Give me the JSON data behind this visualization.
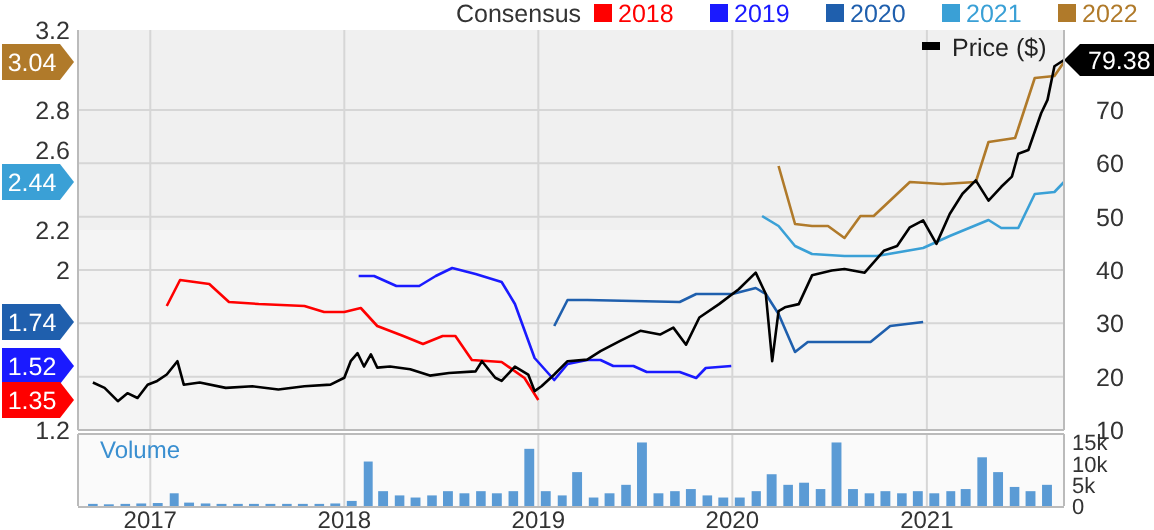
{
  "chart_data": [
    {
      "type": "line",
      "legend_title": "Consensus",
      "legend": "top",
      "grid": true,
      "tick_labels": "y",
      "marker": "none",
      "line_style": "solid",
      "xlim": [
        "2016-08-18",
        "2021-09-16"
      ],
      "xticks": [
        {
          "value": "2017-01-01",
          "label": null
        },
        {
          "value": "2018-01-01",
          "label": null
        },
        {
          "value": "2019-01-01",
          "label": null
        },
        {
          "value": "2020-01-01",
          "label": null
        },
        {
          "value": "2021-01-01",
          "label": null
        }
      ],
      "ylim": [
        1.2,
        3.2
      ],
      "yticks": [
        1.2,
        2,
        2.2,
        2.6,
        2.8,
        3.2
      ],
      "y2lim": [
        10,
        85
      ],
      "y2ticks": [
        10,
        20,
        30,
        40,
        50,
        60,
        70
      ],
      "annotations": [
        "3.04",
        "2.44",
        "1.74",
        "1.52",
        "1.35"
      ],
      "series": [
        {
          "name": "2018",
          "color": "#ff0000",
          "x": [
            "2017-02-01",
            "2017-02-26",
            "2017-04-22",
            "2017-05-29",
            "2017-07-24",
            "2017-10-18",
            "2017-11-24",
            "2018-01-01",
            "2018-02-01",
            "2018-03-04",
            "2018-04-22",
            "2018-05-29",
            "2018-07-05",
            "2018-07-29",
            "2018-08-29",
            "2018-10-24",
            "2018-12-06",
            "2019-01-01"
          ],
          "values": [
            1.82,
            1.95,
            1.93,
            1.84,
            1.83,
            1.82,
            1.79,
            1.79,
            1.81,
            1.72,
            1.67,
            1.63,
            1.67,
            1.67,
            1.55,
            1.54,
            1.46,
            1.35
          ]
        },
        {
          "name": "2019",
          "color": "#1a1aff",
          "x": [
            "2018-01-28",
            "2018-02-26",
            "2018-04-09",
            "2018-05-22",
            "2018-06-22",
            "2018-07-23",
            "2018-09-05",
            "2018-10-24",
            "2018-11-18",
            "2018-12-25",
            "2019-01-31",
            "2019-02-25",
            "2019-04-03",
            "2019-04-28",
            "2019-05-22",
            "2019-06-29",
            "2019-07-24",
            "2019-09-24",
            "2019-10-25",
            "2019-11-12",
            "2019-12-30"
          ],
          "values": [
            1.97,
            1.97,
            1.92,
            1.92,
            1.97,
            2.01,
            1.98,
            1.94,
            1.83,
            1.56,
            1.45,
            1.53,
            1.55,
            1.55,
            1.52,
            1.52,
            1.49,
            1.49,
            1.46,
            1.51,
            1.52
          ]
        },
        {
          "name": "2020",
          "color": "#1f5fad",
          "x": [
            "2019-01-31",
            "2019-02-25",
            "2019-04-03",
            "2019-09-24",
            "2019-10-25",
            "2020-01-01",
            "2020-02-14",
            "2020-03-04",
            "2020-03-28",
            "2020-04-28",
            "2020-05-22",
            "2020-09-17",
            "2020-10-24",
            "2020-12-25"
          ],
          "values": [
            1.72,
            1.85,
            1.85,
            1.84,
            1.88,
            1.88,
            1.91,
            1.88,
            1.78,
            1.59,
            1.64,
            1.64,
            1.72,
            1.74
          ]
        },
        {
          "name": "2021",
          "color": "#3aa0d6",
          "x": [
            "2020-02-26",
            "2020-03-28",
            "2020-04-28",
            "2020-05-30",
            "2020-07-30",
            "2020-09-29",
            "2020-12-25",
            "2021-02-13",
            "2021-04-27",
            "2021-05-21",
            "2021-06-22",
            "2021-07-23",
            "2021-08-29",
            "2021-09-16"
          ],
          "values": [
            2.27,
            2.22,
            2.12,
            2.08,
            2.07,
            2.07,
            2.11,
            2.17,
            2.25,
            2.21,
            2.21,
            2.38,
            2.39,
            2.44
          ]
        },
        {
          "name": "2022",
          "color": "#b07a2a",
          "x": [
            "2020-03-28",
            "2020-04-28",
            "2020-05-30",
            "2020-06-29",
            "2020-07-30",
            "2020-08-29",
            "2020-09-23",
            "2020-11-30",
            "2021-01-31",
            "2021-04-03",
            "2021-04-27",
            "2021-06-16",
            "2021-07-23",
            "2021-08-29",
            "2021-09-16"
          ],
          "values": [
            2.52,
            2.23,
            2.22,
            2.22,
            2.16,
            2.27,
            2.27,
            2.44,
            2.43,
            2.44,
            2.64,
            2.66,
            2.96,
            2.97,
            3.04
          ]
        },
        {
          "name": "Price ($)",
          "color": "#000000",
          "axis": "y2",
          "x": [
            "2016-09-15",
            "2016-10-07",
            "2016-11-01",
            "2016-11-19",
            "2016-12-08",
            "2016-12-27",
            "2017-01-14",
            "2017-02-01",
            "2017-02-21",
            "2017-03-05",
            "2017-04-04",
            "2017-05-23",
            "2017-07-12",
            "2017-08-30",
            "2017-10-18",
            "2017-12-06",
            "2018-01-01",
            "2018-01-13",
            "2018-01-26",
            "2018-02-07",
            "2018-02-20",
            "2018-03-04",
            "2018-03-28",
            "2018-05-05",
            "2018-06-11",
            "2018-07-17",
            "2018-09-05",
            "2018-09-17",
            "2018-10-12",
            "2018-10-24",
            "2018-11-18",
            "2018-12-13",
            "2018-12-25",
            "2019-01-07",
            "2019-01-31",
            "2019-02-25",
            "2019-04-03",
            "2019-04-28",
            "2019-06-04",
            "2019-07-12",
            "2019-08-18",
            "2019-09-12",
            "2019-10-06",
            "2019-10-31",
            "2019-12-07",
            "2020-01-13",
            "2020-02-14",
            "2020-03-04",
            "2020-03-16",
            "2020-03-28",
            "2020-04-09",
            "2020-05-05",
            "2020-05-30",
            "2020-07-06",
            "2020-07-30",
            "2020-09-06",
            "2020-10-12",
            "2020-11-06",
            "2020-11-30",
            "2020-12-25",
            "2021-01-19",
            "2021-02-13",
            "2021-03-09",
            "2021-04-03",
            "2021-04-27",
            "2021-05-21",
            "2021-06-10",
            "2021-06-22",
            "2021-07-11",
            "2021-08-04",
            "2021-08-16",
            "2021-08-29",
            "2021-09-16"
          ],
          "values": [
            18.9,
            17.9,
            15.4,
            16.9,
            16,
            18.5,
            19.2,
            20.4,
            22.9,
            18.5,
            18.9,
            17.9,
            18.2,
            17.6,
            18.2,
            18.5,
            19.8,
            22.9,
            24.4,
            21.9,
            24.2,
            21.7,
            21.9,
            21.4,
            20.2,
            20.7,
            21,
            22.9,
            19.8,
            19.2,
            21.9,
            20.4,
            17.3,
            18.2,
            20.4,
            22.9,
            23.2,
            24.8,
            26.7,
            28.6,
            27.9,
            29.2,
            26,
            31.1,
            33.6,
            36.4,
            39.5,
            35.5,
            22.9,
            32.3,
            33,
            33.6,
            39,
            39.9,
            40.2,
            39.5,
            43.6,
            44.5,
            48,
            49.3,
            44.9,
            50.5,
            54.3,
            56.8,
            53,
            55.6,
            57.5,
            61.8,
            62.5,
            69.4,
            71.9,
            78.2,
            79.38
          ],
          "value_labels": [
            null,
            null,
            null,
            null,
            null,
            null,
            null,
            null,
            null,
            null,
            null,
            null,
            null,
            null,
            null,
            null,
            null,
            null,
            null,
            null,
            null,
            null,
            null,
            null,
            null,
            null,
            null,
            null,
            null,
            null,
            null,
            null,
            null,
            null,
            null,
            null,
            null,
            null,
            null,
            null,
            null,
            null,
            null,
            null,
            null,
            null,
            null,
            null,
            null,
            null,
            null,
            null,
            null,
            null,
            null,
            null,
            null,
            null,
            null,
            null,
            null,
            null,
            null,
            null,
            null,
            null,
            null,
            null,
            null,
            null,
            null,
            null,
            "79.38"
          ]
        }
      ]
    },
    {
      "type": "bar",
      "title": "Volume",
      "grid": "x",
      "xlim": [
        "2016-08-18",
        "2021-09-16"
      ],
      "xticks": [
        {
          "value": "2017-01-01",
          "label": "2017"
        },
        {
          "value": "2018-01-01",
          "label": "2018"
        },
        {
          "value": "2019-01-01",
          "label": "2019"
        },
        {
          "value": "2020-01-01",
          "label": "2020"
        },
        {
          "value": "2021-01-01",
          "label": "2021"
        }
      ],
      "ylim": [
        0,
        17000
      ],
      "yticks": [
        0,
        {
          "value": 5000,
          "label": "5k"
        },
        {
          "value": 10000,
          "label": "10k"
        },
        {
          "value": 15000,
          "label": "15k"
        }
      ],
      "series": [
        {
          "color": "#5b9bd5",
          "x": [
            "2016-09-15",
            "2016-10-15",
            "2016-11-15",
            "2016-12-15",
            "2017-01-15",
            "2017-02-15",
            "2017-03-15",
            "2017-04-15",
            "2017-05-15",
            "2017-06-15",
            "2017-07-15",
            "2017-08-15",
            "2017-09-15",
            "2017-10-15",
            "2017-11-15",
            "2017-12-15",
            "2018-01-15",
            "2018-02-15",
            "2018-03-15",
            "2018-04-15",
            "2018-05-15",
            "2018-06-15",
            "2018-07-15",
            "2018-08-15",
            "2018-09-15",
            "2018-10-15",
            "2018-11-15",
            "2018-12-15",
            "2019-01-15",
            "2019-02-15",
            "2019-03-15",
            "2019-04-15",
            "2019-05-15",
            "2019-06-15",
            "2019-07-15",
            "2019-08-15",
            "2019-09-15",
            "2019-10-15",
            "2019-11-15",
            "2019-12-15",
            "2020-01-15",
            "2020-02-15",
            "2020-03-15",
            "2020-04-15",
            "2020-05-15",
            "2020-06-15",
            "2020-07-15",
            "2020-08-15",
            "2020-09-15",
            "2020-10-15",
            "2020-11-15",
            "2020-12-15",
            "2021-01-15",
            "2021-02-15",
            "2021-03-15",
            "2021-04-15",
            "2021-05-15",
            "2021-06-15",
            "2021-07-15",
            "2021-08-15"
          ],
          "values": [
            500,
            400,
            500,
            600,
            700,
            3000,
            800,
            600,
            500,
            500,
            500,
            500,
            500,
            500,
            500,
            600,
            1200,
            10500,
            3500,
            2500,
            2000,
            2500,
            3500,
            3000,
            3500,
            3000,
            3500,
            13500,
            3500,
            2500,
            8000,
            2000,
            3000,
            5000,
            15000,
            3000,
            3500,
            4000,
            2500,
            2000,
            2000,
            3500,
            7500,
            5000,
            5500,
            4000,
            15000,
            4000,
            3000,
            3500,
            3000,
            3500,
            3000,
            3500,
            4000,
            11500,
            8000,
            4500,
            3500,
            5000
          ]
        }
      ]
    }
  ]
}
